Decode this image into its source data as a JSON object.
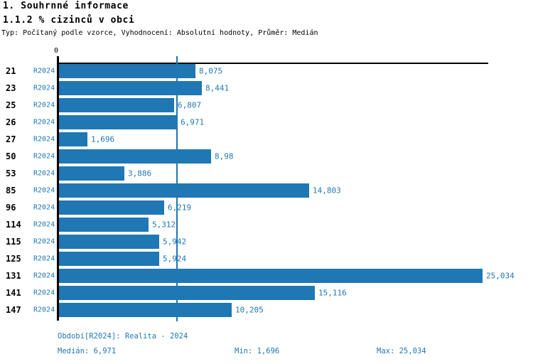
{
  "header": {
    "title": "1. Souhrnné informace",
    "subtitle": "1.1.2 % cizinců v obci",
    "meta": "Typ: Počítaný podle vzorce, Vyhodnocení: Absolutní hodnoty, Průměr: Medián"
  },
  "chart_data": {
    "type": "bar",
    "orientation": "horizontal",
    "title": "1.1.2 % cizinců v obci",
    "axis_origin_label": "0",
    "categories": [
      "21",
      "23",
      "25",
      "26",
      "27",
      "50",
      "53",
      "85",
      "96",
      "114",
      "115",
      "125",
      "131",
      "141",
      "147"
    ],
    "series_label": "R2024",
    "values": [
      8.075,
      8.441,
      6.807,
      6.971,
      1.696,
      8.98,
      3.886,
      14.803,
      6.219,
      5.312,
      5.942,
      5.924,
      25.034,
      15.116,
      10.205
    ],
    "value_labels": [
      "8,075",
      "8,441",
      "6,807",
      "6,971",
      "1,696",
      "8,98",
      "3,886",
      "14,803",
      "6,219",
      "5,312",
      "5,942",
      "5,924",
      "25,034",
      "15,116",
      "10,205"
    ],
    "median": 6.971,
    "min": 1.696,
    "max": 25.034,
    "xlim": [
      0,
      25.4
    ],
    "grid": false,
    "bar_color": "#1f77b4",
    "median_line_color": "#1f77b4",
    "label_color": "#1f77b4"
  },
  "footer": {
    "period": "Období[R2024]: Realita - 2024",
    "median": "Medián: 6,971",
    "min": "Min: 1,696",
    "max": "Max: 25,034"
  }
}
